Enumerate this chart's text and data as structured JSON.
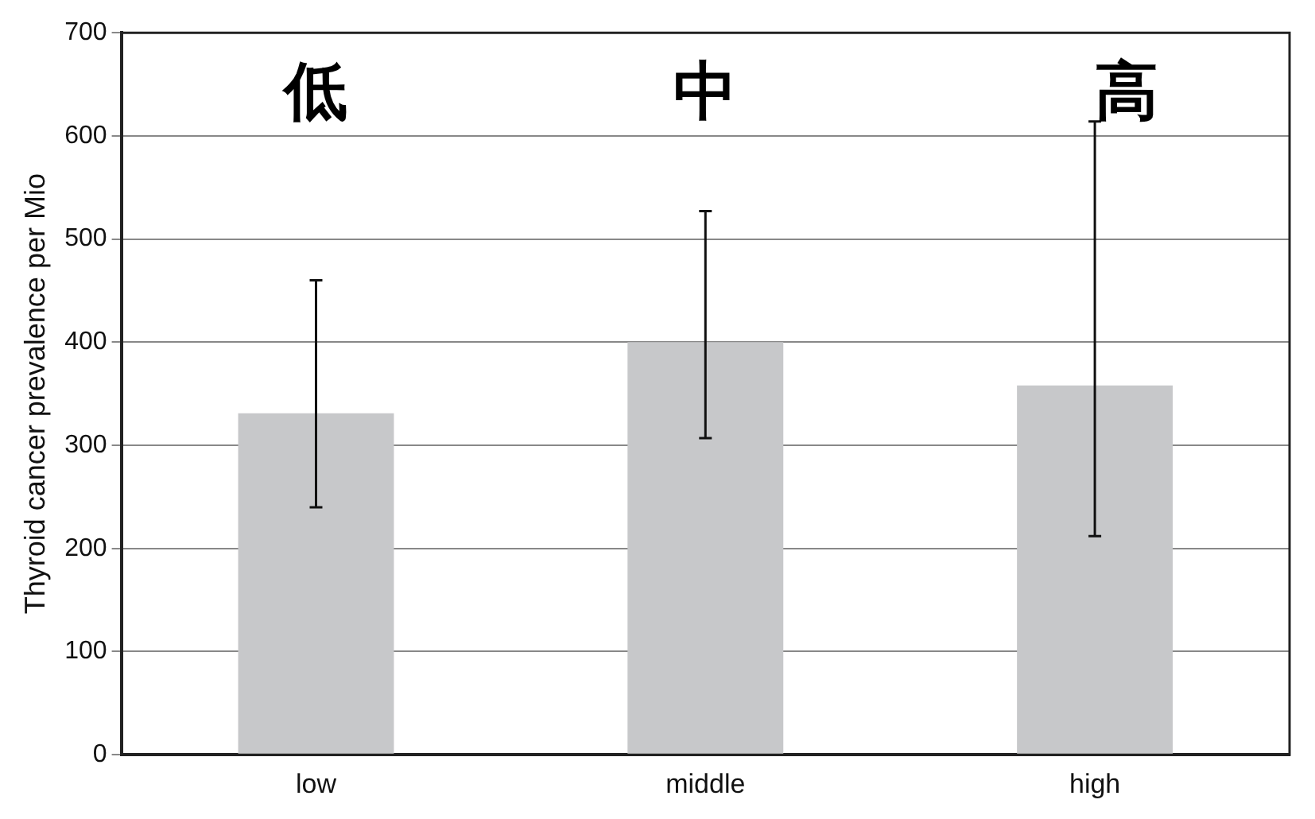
{
  "chart_data": {
    "type": "bar",
    "ylabel": "Thyroid cancer prevalence per Mio",
    "categories": [
      "low",
      "middle",
      "high"
    ],
    "values": [
      331,
      400,
      358
    ],
    "errors": [
      [
        240,
        460
      ],
      [
        307,
        527
      ],
      [
        212,
        614
      ]
    ],
    "color": "#c7c8ca",
    "ylim": [
      0,
      700
    ],
    "yticks": [
      0,
      100,
      200,
      300,
      400,
      500,
      600,
      700
    ],
    "grid": "y",
    "legend": false,
    "annotations": [
      "低",
      "中",
      "高"
    ]
  }
}
